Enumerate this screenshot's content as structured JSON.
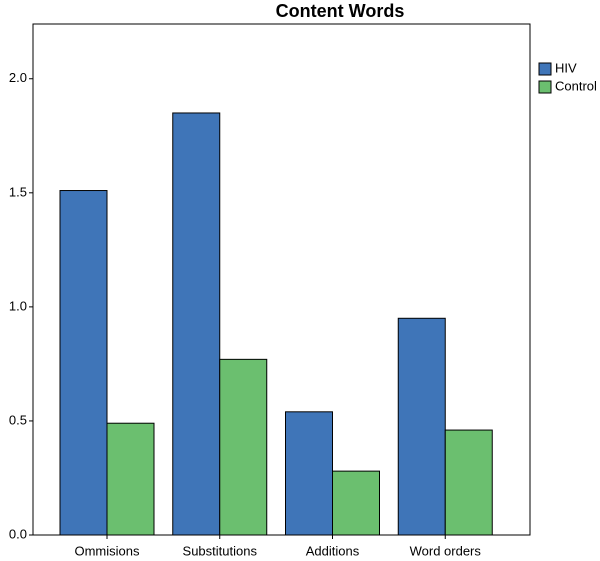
{
  "chart_data": {
    "type": "bar",
    "title": "Content Words",
    "categories": [
      "Ommisions",
      "Substitutions",
      "Additions",
      "Word orders"
    ],
    "series": [
      {
        "name": "HIV",
        "color": "#3f75b8",
        "values": [
          1.51,
          1.85,
          0.54,
          0.95
        ]
      },
      {
        "name": "Control",
        "color": "#6bbf6f",
        "values": [
          0.49,
          0.77,
          0.28,
          0.46
        ]
      }
    ],
    "ylim": [
      0,
      2.24
    ],
    "yticks": [
      {
        "value": 0,
        "label": "0.0"
      },
      0.5,
      {
        "value": 1,
        "label": "1.0"
      },
      1.5,
      {
        "value": 2,
        "label": "2.0"
      }
    ],
    "grid": false,
    "legend": "right"
  }
}
